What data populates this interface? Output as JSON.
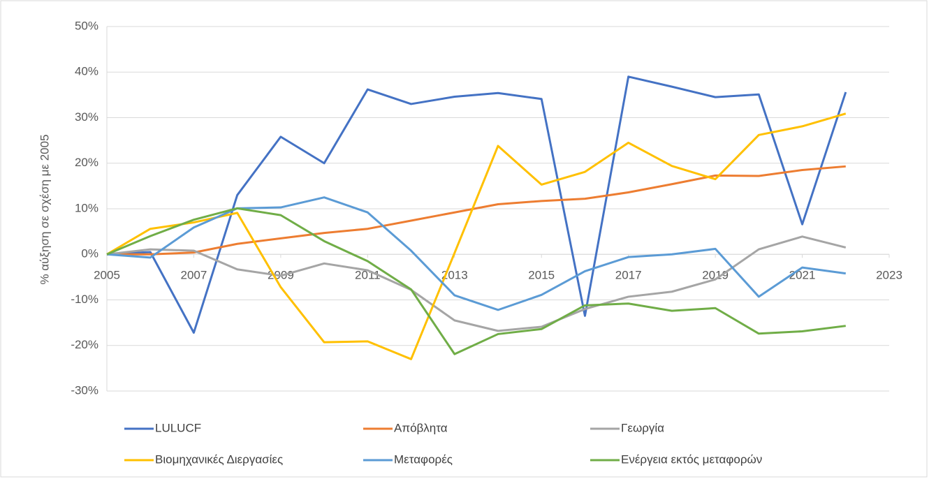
{
  "chart_data": {
    "type": "line",
    "y_label": "% αύξηση σε σχέση με 2005",
    "x": [
      2005,
      2006,
      2007,
      2008,
      2009,
      2010,
      2011,
      2012,
      2013,
      2014,
      2015,
      2016,
      2017,
      2018,
      2019,
      2020,
      2021,
      2022
    ],
    "xlim": [
      2005,
      2023
    ],
    "xticks": [
      2005,
      2007,
      2009,
      2011,
      2013,
      2015,
      2017,
      2019,
      2021,
      2023
    ],
    "ylim": [
      -30,
      50
    ],
    "yticks": [
      {
        "value": -30,
        "label": "-30%"
      },
      {
        "value": -20,
        "label": "-20%"
      },
      {
        "value": -10,
        "label": "-10%"
      },
      {
        "value": 0,
        "label": "0%"
      },
      {
        "value": 10,
        "label": "10%"
      },
      {
        "value": 20,
        "label": "20%"
      },
      {
        "value": 30,
        "label": "30%"
      },
      {
        "value": 40,
        "label": "40%"
      },
      {
        "value": 50,
        "label": "50%"
      }
    ],
    "grid": true,
    "legend": "bottom",
    "series": [
      {
        "name": "LULUCF",
        "color": "#4472c4",
        "values": [
          0,
          0.5,
          -17.2,
          13,
          25.8,
          20,
          36.2,
          33,
          34.6,
          35.4,
          34.1,
          -13.5,
          39,
          36.8,
          34.5,
          35.1,
          6.6,
          35.6
        ]
      },
      {
        "name": "Απόβλητα",
        "color": "#ed7d31",
        "values": [
          0,
          0,
          0.4,
          2.3,
          3.5,
          4.7,
          5.6,
          7.4,
          9.2,
          11,
          11.7,
          12.2,
          13.6,
          15.4,
          17.3,
          17.2,
          18.5,
          19.3
        ]
      },
      {
        "name": "Γεωργία",
        "color": "#a5a5a5",
        "values": [
          0,
          1.1,
          0.8,
          -3.3,
          -4.7,
          -2,
          -3.5,
          -7.8,
          -14.5,
          -16.8,
          -15.9,
          -12,
          -9.3,
          -8.2,
          -5.5,
          1.1,
          3.9,
          1.5
        ]
      },
      {
        "name": "Βιομηχανικές Διεργασίες",
        "color": "#ffc000",
        "values": [
          0,
          5.6,
          7,
          9.1,
          -7.2,
          -19.3,
          -19.1,
          -23,
          0.3,
          23.8,
          15.3,
          18.1,
          24.5,
          19.4,
          16.5,
          26.2,
          28.1,
          30.9
        ]
      },
      {
        "name": "Μεταφορές",
        "color": "#5b9bd5",
        "values": [
          0,
          -0.7,
          5.9,
          10.1,
          10.3,
          12.5,
          9.2,
          0.8,
          -9,
          -12.2,
          -8.9,
          -3.7,
          -0.6,
          0,
          1.2,
          -9.3,
          -2.9,
          -4.2
        ]
      },
      {
        "name": "Ενέργεια εκτός μεταφορών",
        "color": "#70ad47",
        "values": [
          0,
          4,
          7.6,
          10.1,
          8.6,
          2.9,
          -1.5,
          -7.7,
          -21.9,
          -17.5,
          -16.4,
          -11.2,
          -10.8,
          -12.4,
          -11.8,
          -17.4,
          -16.9,
          -15.7
        ]
      }
    ]
  }
}
